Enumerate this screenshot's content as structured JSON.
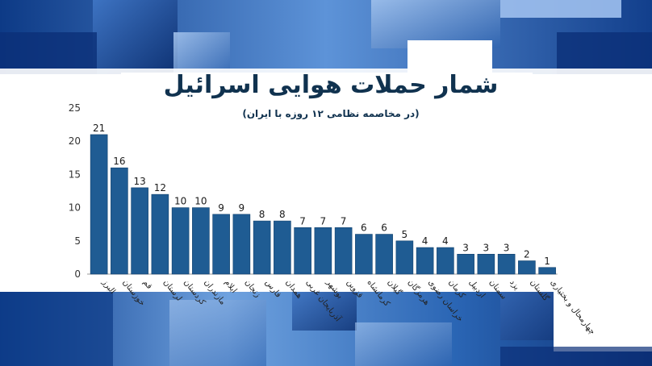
{
  "colors": {
    "bar": "#1f5c93",
    "bar_stroke": "#0f3f6b",
    "background_dark": "#0d3f8f",
    "background_light": "#8fb8ea",
    "text": "#10324f",
    "axis_text": "#333333"
  },
  "chart_data": {
    "type": "bar",
    "title": "شمار حملات هوایی اسرائیل",
    "subtitle": "(در مخاصمه نظامی ۱۲ روزه با ایران)",
    "xlabel": "",
    "ylabel": "",
    "ylim": [
      0,
      25
    ],
    "yticks": [
      0,
      5,
      10,
      15,
      20,
      25
    ],
    "grid": false,
    "categories": [
      "البرز",
      "خوزستان",
      "قم",
      "لرستان",
      "کردستان",
      "مازندران",
      "ایلام",
      "زنجان",
      "فارس",
      "همدان",
      "آذربایجان غربی",
      "بوشهر",
      "قزوین",
      "کرمانشاه",
      "گیلان",
      "هرمزگان",
      "خراسان رضوی",
      "کرمان",
      "اردبیل",
      "سمنان",
      "یزد",
      "گلستان",
      "چهارمحال و بختیاری"
    ],
    "values": [
      21,
      16,
      13,
      12,
      10,
      10,
      9,
      9,
      8,
      8,
      7,
      7,
      7,
      6,
      6,
      5,
      4,
      4,
      3,
      3,
      3,
      2,
      1
    ]
  }
}
